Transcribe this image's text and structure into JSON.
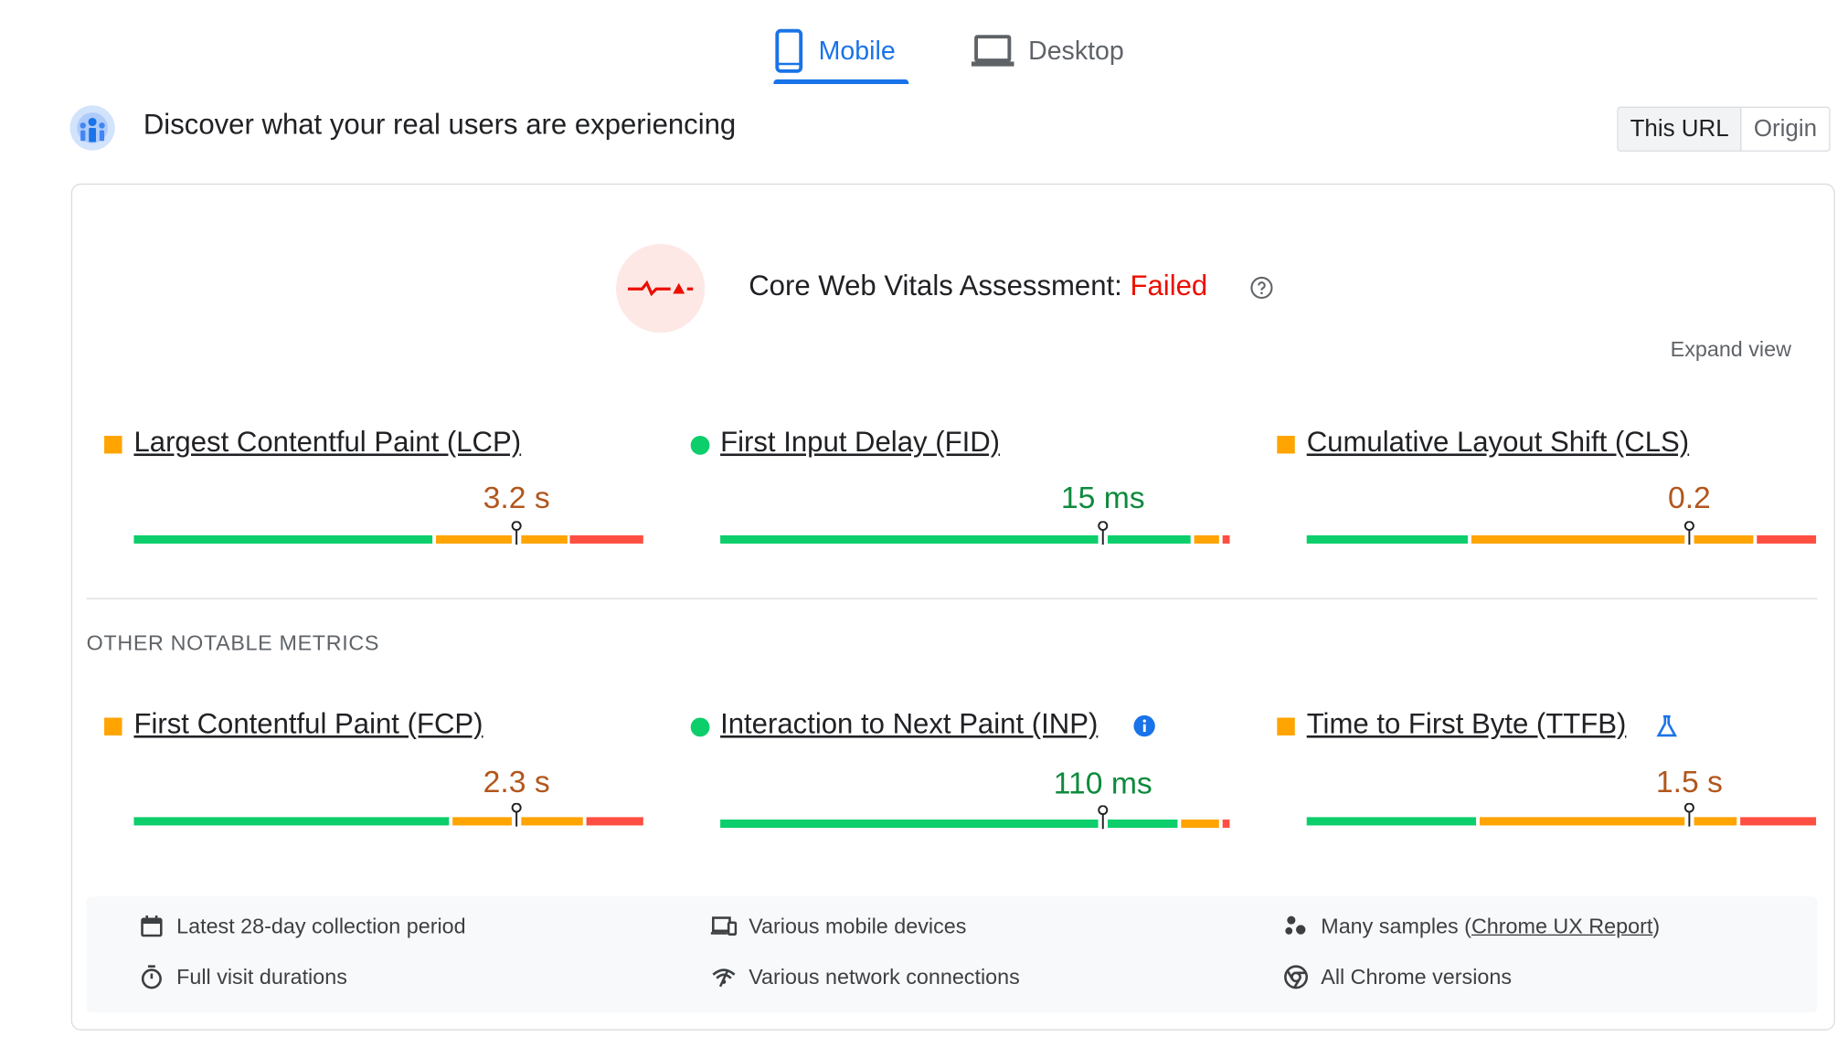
{
  "tabs": {
    "mobile": "Mobile",
    "desktop": "Desktop",
    "active": "mobile"
  },
  "header": {
    "title": "Discover what your real users are experiencing"
  },
  "scope_toggle": {
    "this_url": "This URL",
    "origin": "Origin",
    "selected": "This URL"
  },
  "assessment": {
    "label": "Core Web Vitals Assessment:",
    "status": "Failed",
    "status_color": "#eb0f00",
    "expand": "Expand view"
  },
  "core_metrics": [
    {
      "label": "Largest Contentful Paint (LCP)",
      "value": "3.2 s",
      "rating": "needs-improvement"
    },
    {
      "label": "First Input Delay (FID)",
      "value": "15 ms",
      "rating": "good"
    },
    {
      "label": "Cumulative Layout Shift (CLS)",
      "value": "0.2",
      "rating": "needs-improvement"
    }
  ],
  "other_title": "OTHER NOTABLE METRICS",
  "other_metrics": [
    {
      "label": "First Contentful Paint (FCP)",
      "value": "2.3 s",
      "rating": "needs-improvement"
    },
    {
      "label": "Interaction to Next Paint (INP)",
      "value": "110 ms",
      "rating": "good"
    },
    {
      "label": "Time to First Byte (TTFB)",
      "value": "1.5 s",
      "rating": "needs-improvement"
    }
  ],
  "footer": {
    "period": "Latest 28-day collection period",
    "devices": "Various mobile devices",
    "samples_prefix": "Many samples (",
    "samples_link": "Chrome UX Report",
    "samples_suffix": ")",
    "durations": "Full visit durations",
    "network": "Various network connections",
    "chrome": "All Chrome versions"
  },
  "colors": {
    "good": "#0cce6b",
    "average": "#ffa400",
    "poor": "#ff4e42",
    "accent": "#1a73e8"
  }
}
